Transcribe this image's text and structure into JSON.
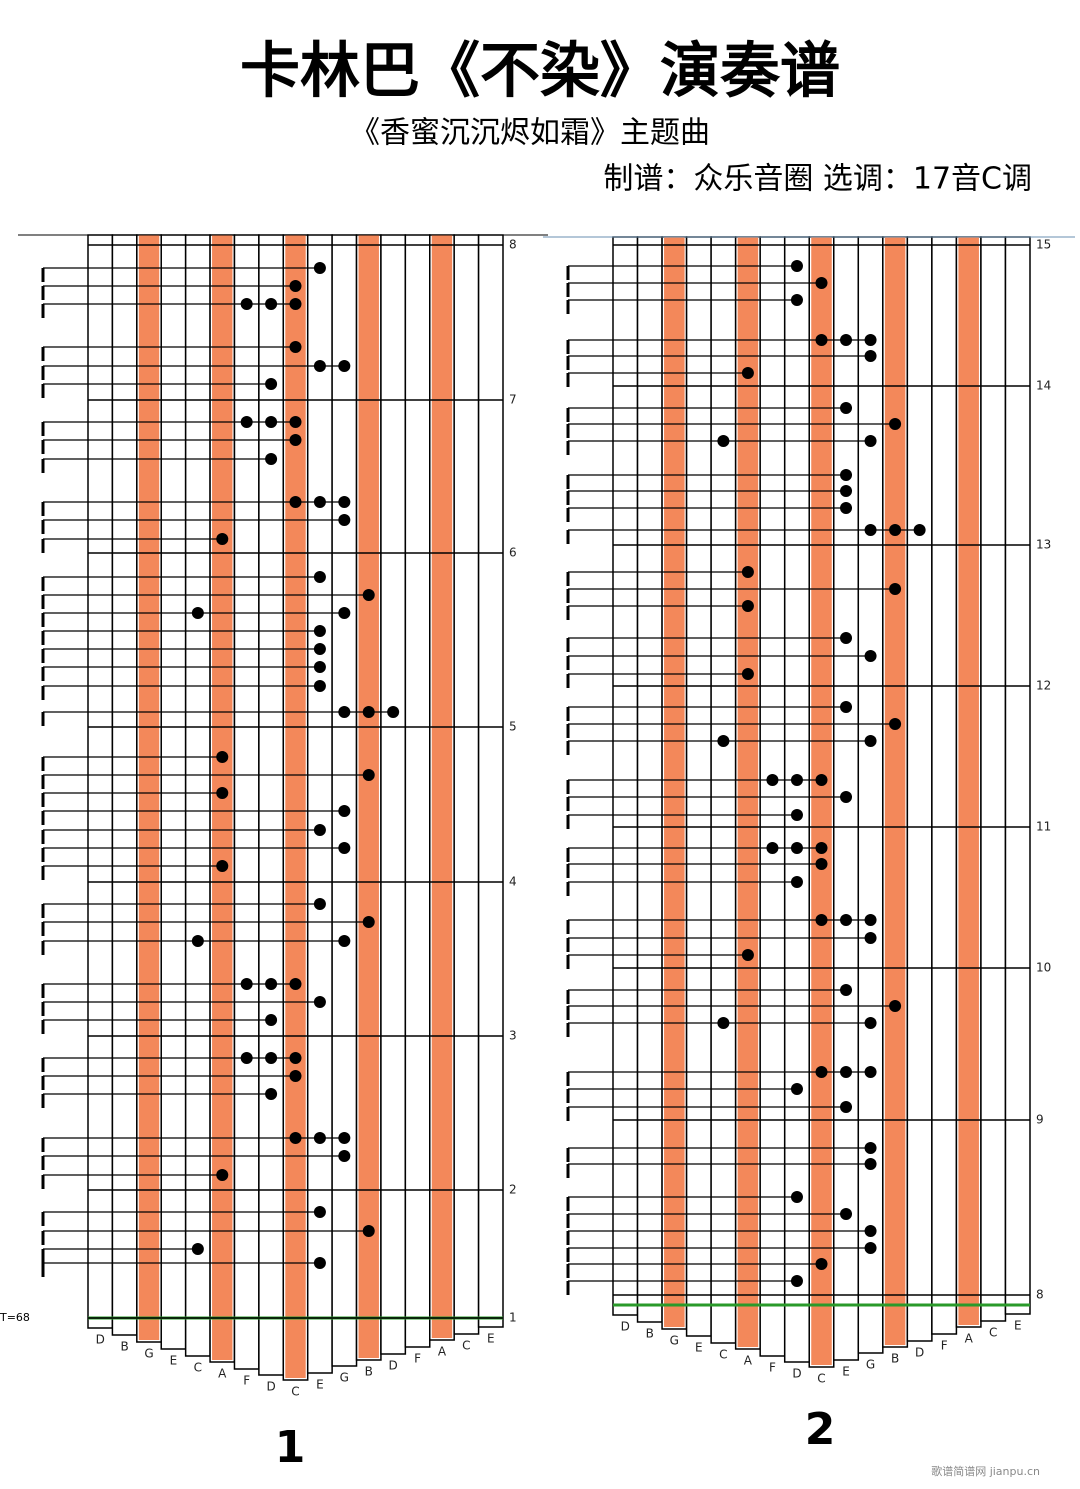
{
  "header": {
    "title": "卡林巴《不染》演奏谱",
    "subtitle": "《香蜜沉沉烬如霜》主题曲",
    "credits": "制谱：众乐音圈   选调：17音C调"
  },
  "sheets": [
    {
      "page": "1",
      "tempo": "T=68",
      "measures": [
        "8",
        "7",
        "6",
        "5",
        "4",
        "3",
        "2",
        "1"
      ],
      "keys": [
        "D",
        "B",
        "G",
        "E",
        "C",
        "A",
        "F",
        "D",
        "C",
        "E",
        "G",
        "B",
        "D",
        "F",
        "A",
        "C",
        "E"
      ]
    },
    {
      "page": "2",
      "measures": [
        "15",
        "14",
        "13",
        "12",
        "11",
        "10",
        "9",
        "8"
      ],
      "keys": [
        "D",
        "B",
        "G",
        "E",
        "C",
        "A",
        "F",
        "D",
        "C",
        "E",
        "G",
        "B",
        "D",
        "F",
        "A",
        "C",
        "E"
      ]
    }
  ],
  "watermark": "歌谱简谱网 jianpu.cn"
}
